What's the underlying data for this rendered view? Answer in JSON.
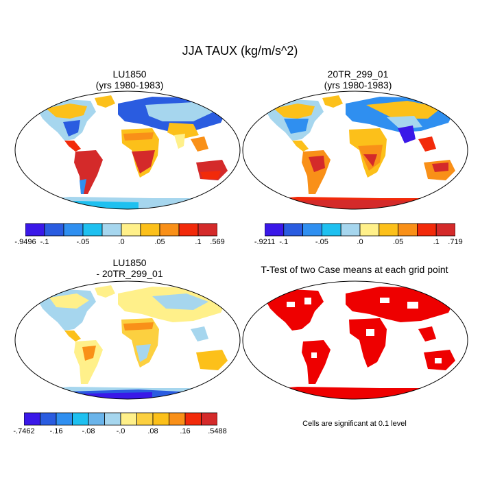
{
  "figure_title": "JJA TAUX (kg/m/s^2)",
  "panels": [
    {
      "id": "lu1850",
      "title_line1": "LU1850",
      "title_line2": "(yrs 1980-1983)",
      "colors": [
        "#3a18e8",
        "#2a5ce0",
        "#2f8ff0",
        "#1ec0f0",
        "#a6d6ee",
        "#fff08a",
        "#fcc01a",
        "#f99018",
        "#f22a0a",
        "#d42a2a"
      ],
      "colorbar_labels": [
        "-.9496",
        "-.1",
        "-.05",
        ".0",
        ".05",
        ".1",
        ".569"
      ],
      "colorbar_label_boundaries": [
        0,
        1,
        3,
        5,
        7,
        9,
        10
      ]
    },
    {
      "id": "20tr",
      "title_line1": "20TR_299_01",
      "title_line2": "(yrs 1980-1983)",
      "colors": [
        "#3a18e8",
        "#2a5ce0",
        "#2f8ff0",
        "#1ec0f0",
        "#a6d6ee",
        "#fff08a",
        "#fcc01a",
        "#f99018",
        "#f22a0a",
        "#d42a2a"
      ],
      "colorbar_labels": [
        "-.9211",
        "-.1",
        "-.05",
        ".0",
        ".05",
        ".1",
        ".719"
      ],
      "colorbar_label_boundaries": [
        0,
        1,
        3,
        5,
        7,
        9,
        10
      ]
    },
    {
      "id": "diff",
      "title_line1": "LU1850",
      "title_line2": "- 20TR_299_01",
      "colors": [
        "#3a18e8",
        "#2a5ce0",
        "#2f8ff0",
        "#1ec0f0",
        "#6ab4ea",
        "#a6d6ee",
        "#fff08a",
        "#fcd040",
        "#fcc01a",
        "#f99018",
        "#f22a0a",
        "#d42a2a"
      ],
      "colorbar_labels": [
        "-.7462",
        "-.16",
        "-.08",
        "-.0",
        ".08",
        ".16",
        ".5488"
      ],
      "colorbar_label_boundaries": [
        0,
        2,
        4,
        6,
        8,
        10,
        12
      ]
    },
    {
      "id": "ttest",
      "title_line1": "T-Test of two Case means at each grid point",
      "title_line2": "",
      "note": "Cells are significant at 0.1 level"
    }
  ]
}
